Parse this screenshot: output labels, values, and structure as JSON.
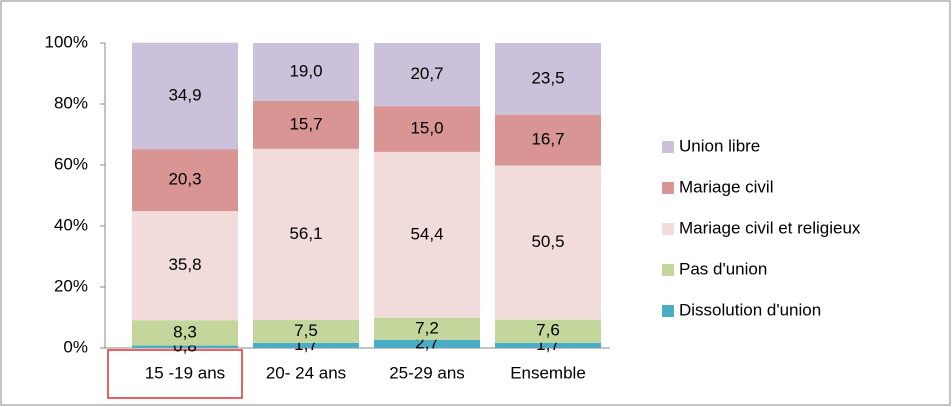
{
  "chart_data": {
    "type": "bar",
    "stacked": true,
    "categories": [
      "15 -19 ans",
      "20- 24 ans",
      "25-29 ans",
      "Ensemble"
    ],
    "series": [
      {
        "name": "Dissolution d'union",
        "color": "#4bacc6",
        "values": [
          0.8,
          1.7,
          2.7,
          1.7
        ],
        "value_labels": [
          "0,8",
          "1,7",
          "2,7",
          "1,7"
        ]
      },
      {
        "name": "Pas d'union",
        "color": "#c3d69b",
        "values": [
          8.3,
          7.5,
          7.2,
          7.6
        ],
        "value_labels": [
          "8,3",
          "7,5",
          "7,2",
          "7,6"
        ]
      },
      {
        "name": "Mariage civil et religieux",
        "color": "#f2dcdb",
        "values": [
          35.8,
          56.1,
          54.4,
          50.5
        ],
        "value_labels": [
          "35,8",
          "56,1",
          "54,4",
          "50,5"
        ]
      },
      {
        "name": "Mariage civil",
        "color": "#d99594",
        "values": [
          20.3,
          15.7,
          15.0,
          16.7
        ],
        "value_labels": [
          "20,3",
          "15,7",
          "15,0",
          "16,7"
        ]
      },
      {
        "name": "Union libre",
        "color": "#ccc1da",
        "values": [
          34.9,
          19.0,
          20.7,
          23.5
        ],
        "value_labels": [
          "34,9",
          "19,0",
          "20,7",
          "23,5"
        ]
      }
    ],
    "ylim": [
      0,
      100
    ],
    "yticks": [
      {
        "value": 0,
        "label": "0%"
      },
      {
        "value": 20,
        "label": "20%"
      },
      {
        "value": 40,
        "label": "40%"
      },
      {
        "value": 60,
        "label": "60%"
      },
      {
        "value": 80,
        "label": "80%"
      },
      {
        "value": 100,
        "label": "100%"
      }
    ],
    "legend": "right"
  }
}
